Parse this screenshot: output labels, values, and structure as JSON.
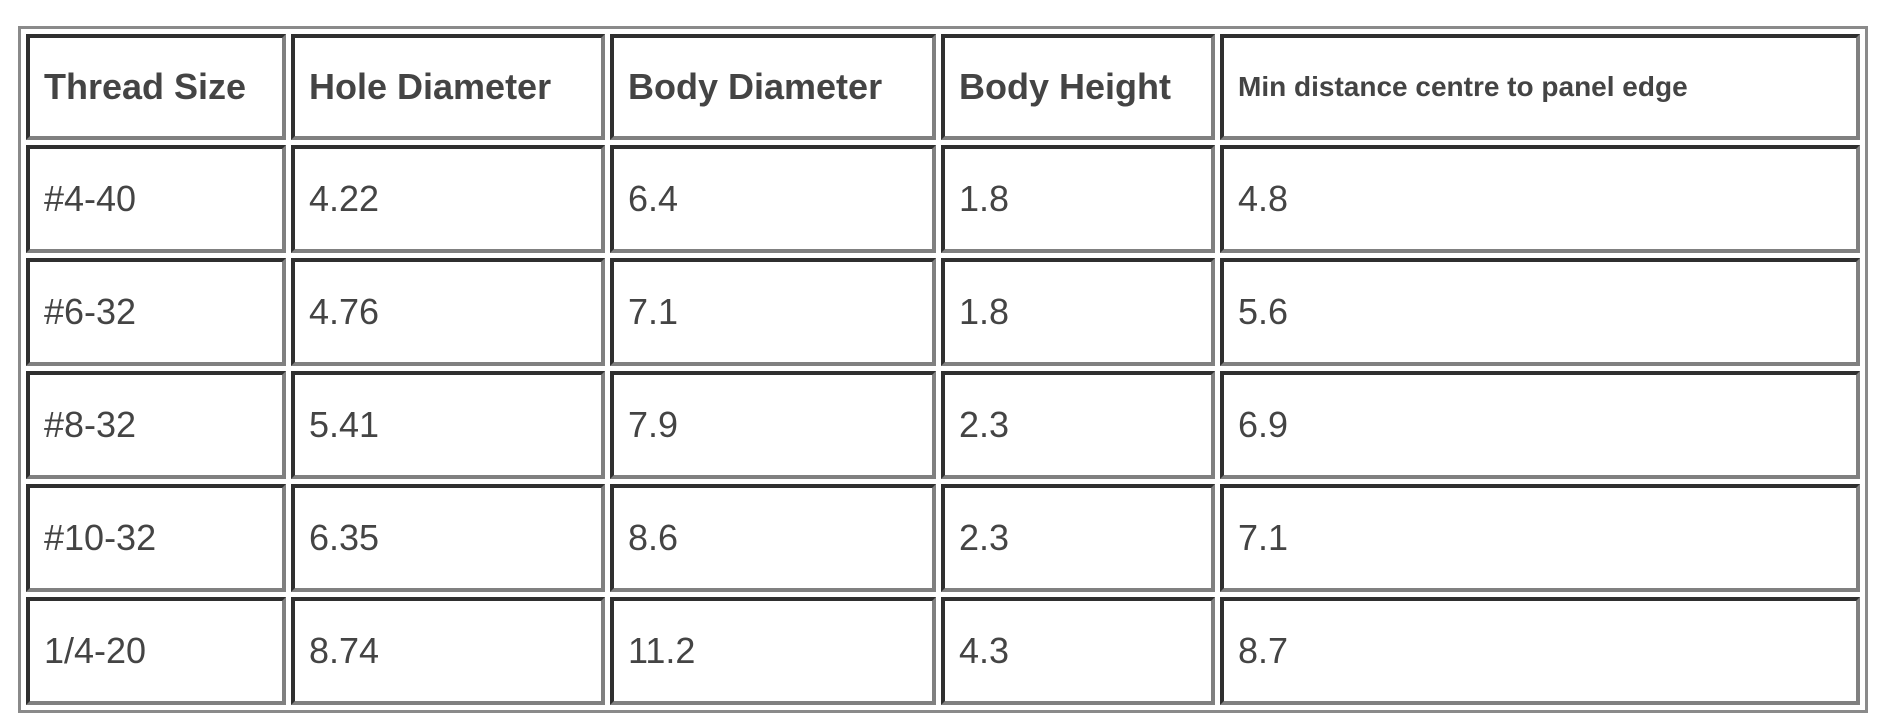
{
  "table": {
    "headers": [
      "Thread Size",
      "Hole Diameter",
      "Body Diameter",
      "Body Height",
      "Min distance centre to panel edge"
    ],
    "rows": [
      [
        "#4-40",
        "4.22",
        "6.4",
        "1.8",
        "4.8"
      ],
      [
        "#6-32",
        "4.76",
        "7.1",
        "1.8",
        "5.6"
      ],
      [
        "#8-32",
        "5.41",
        "7.9",
        "2.3",
        "6.9"
      ],
      [
        "#10-32",
        "6.35",
        "8.6",
        "2.3",
        "7.1"
      ],
      [
        "1/4-20",
        "8.74",
        "11.2",
        "4.3",
        "8.7"
      ]
    ]
  }
}
